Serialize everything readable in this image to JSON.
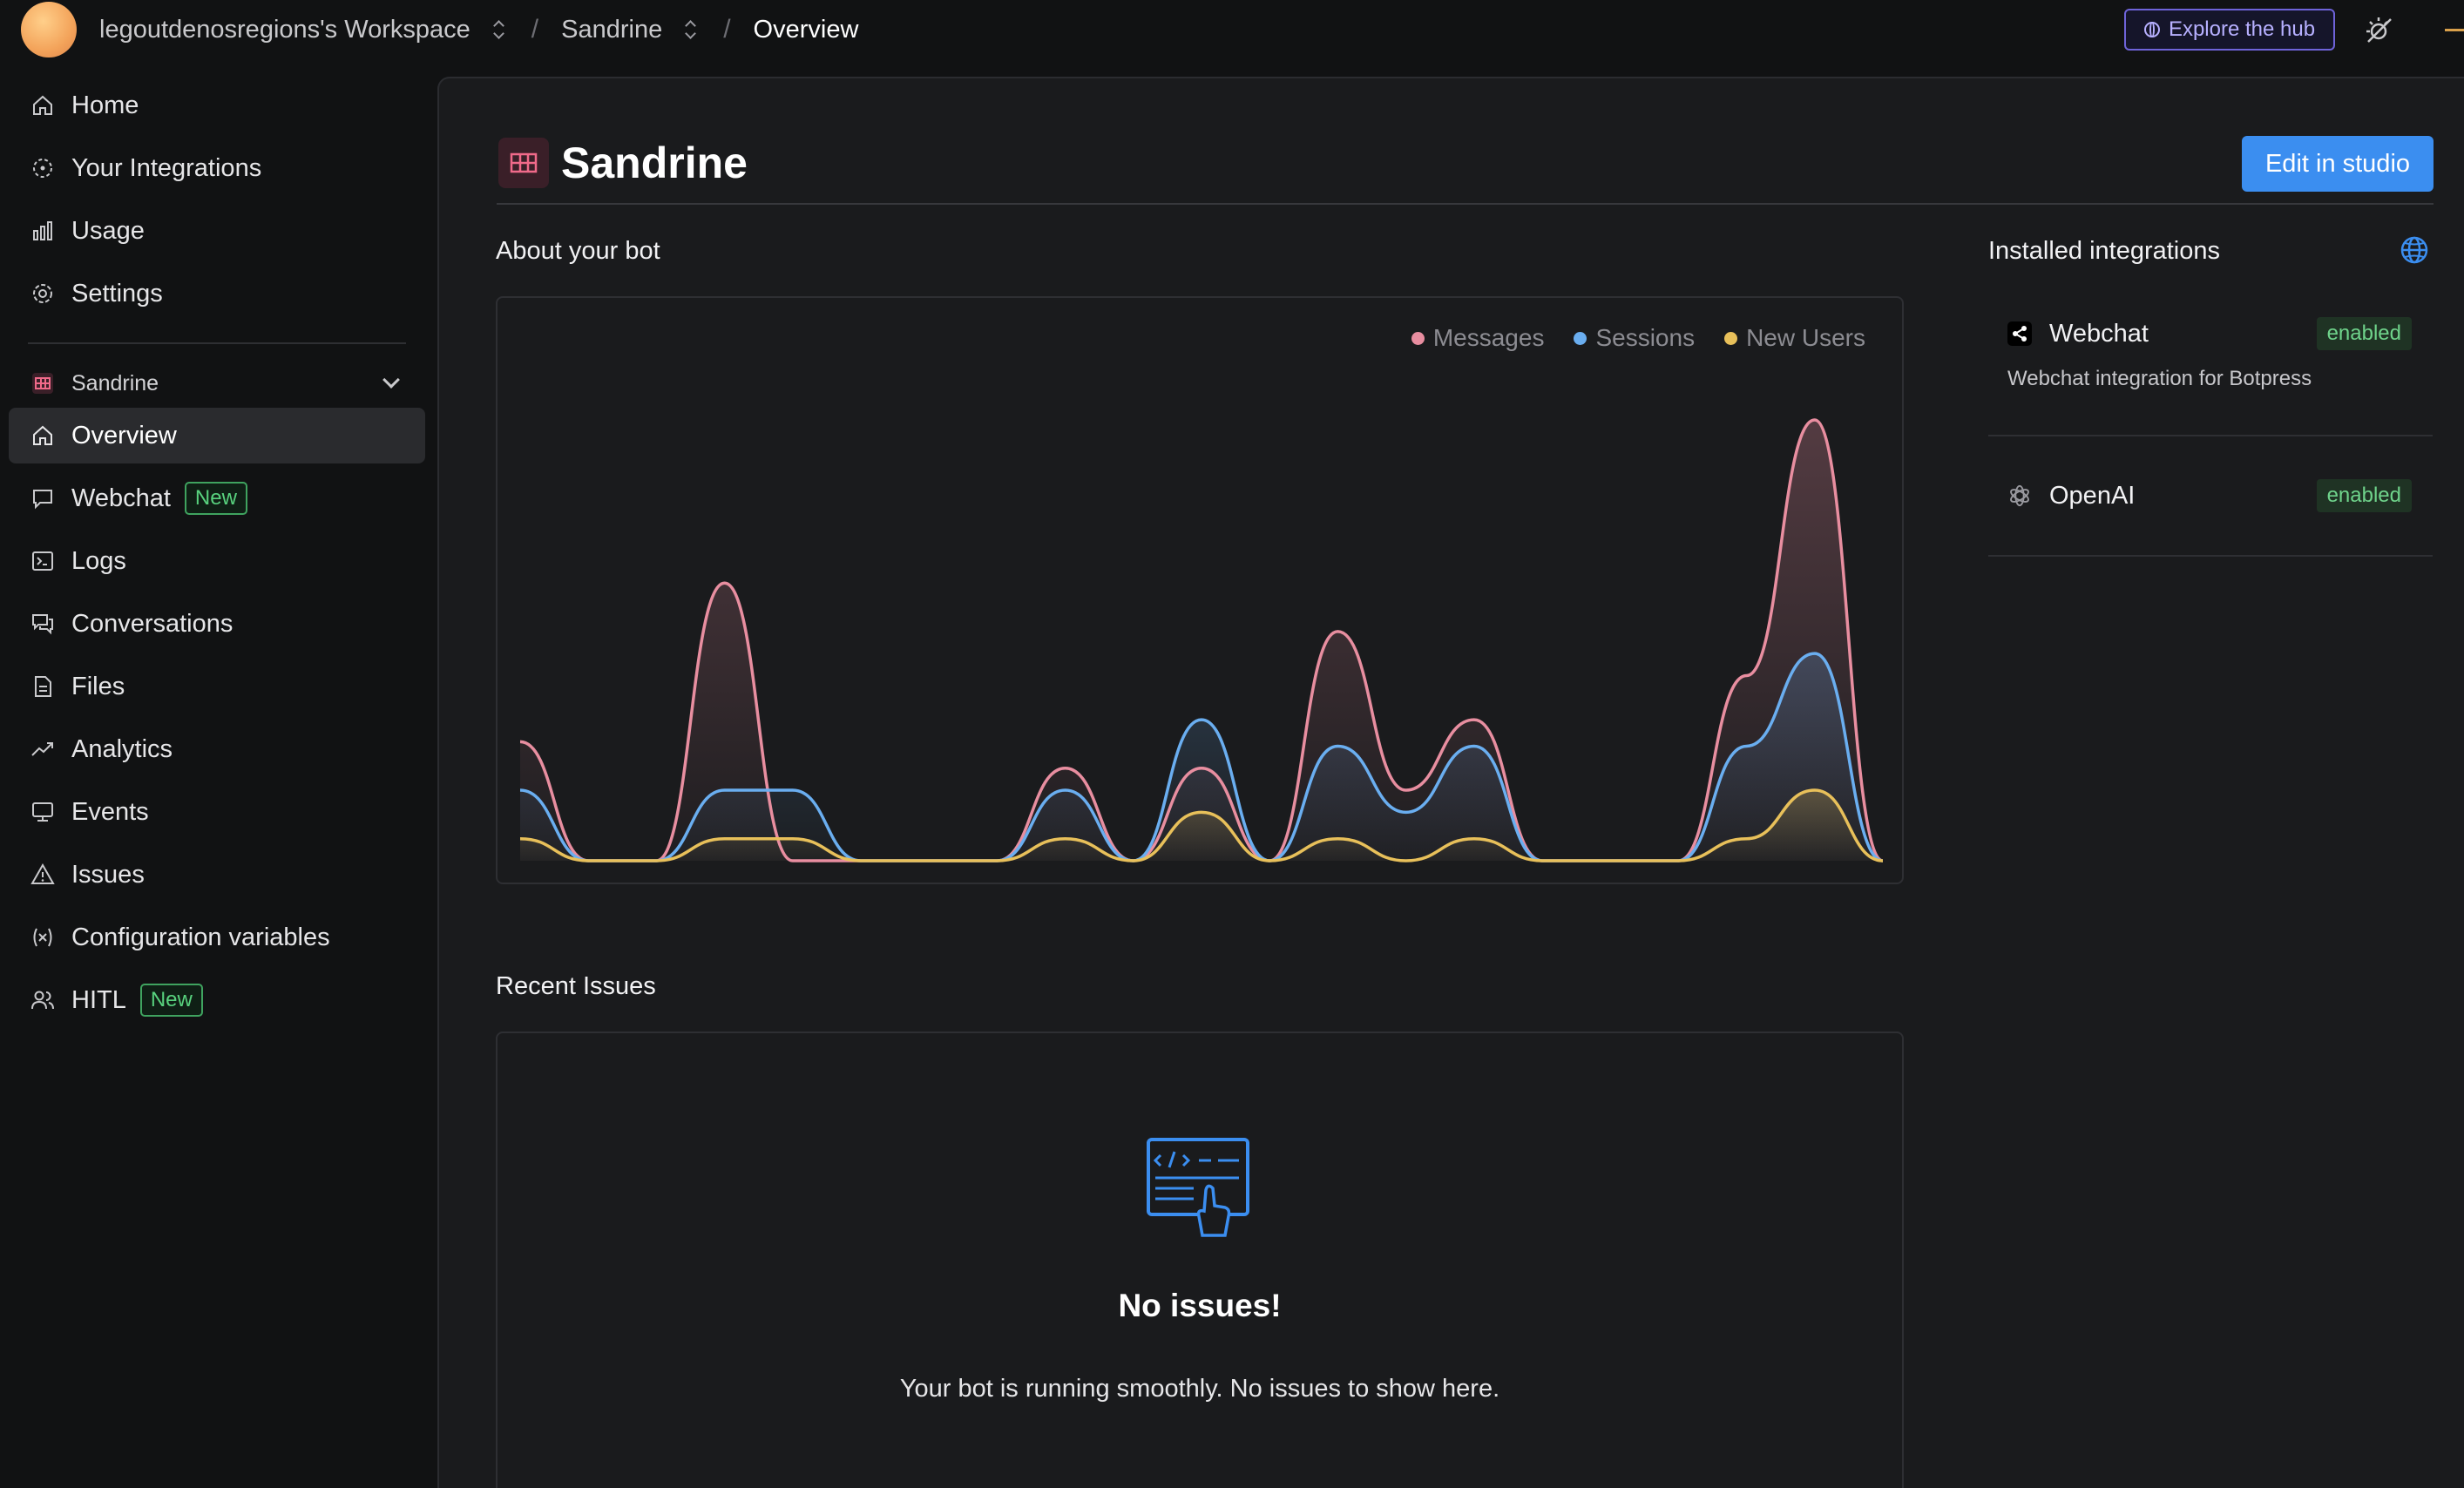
{
  "topbar": {
    "workspace": "legoutdenosregions's Workspace",
    "bot": "Sandrine",
    "page": "Overview",
    "explore_label": "Explore the hub"
  },
  "sidebar": {
    "items_top": [
      {
        "label": "Home",
        "icon": "home-icon"
      },
      {
        "label": "Your Integrations",
        "icon": "integrations-icon"
      },
      {
        "label": "Usage",
        "icon": "bar-chart-icon"
      },
      {
        "label": "Settings",
        "icon": "gear-icon"
      }
    ],
    "bot_name": "Sandrine",
    "items_bot": [
      {
        "label": "Overview",
        "icon": "home-icon",
        "active": true
      },
      {
        "label": "Webchat",
        "icon": "chat-bubble-icon",
        "badge": "New"
      },
      {
        "label": "Logs",
        "icon": "terminal-icon"
      },
      {
        "label": "Conversations",
        "icon": "conversations-icon"
      },
      {
        "label": "Files",
        "icon": "file-icon"
      },
      {
        "label": "Analytics",
        "icon": "trend-icon"
      },
      {
        "label": "Events",
        "icon": "monitor-icon"
      },
      {
        "label": "Issues",
        "icon": "warning-icon"
      },
      {
        "label": "Configuration variables",
        "icon": "variable-icon"
      },
      {
        "label": "HITL",
        "icon": "users-icon",
        "badge": "New"
      }
    ]
  },
  "main": {
    "title": "Sandrine",
    "edit_label": "Edit in studio",
    "about_label": "About your bot",
    "recent_issues_label": "Recent Issues",
    "issues_empty_title": "No issues!",
    "issues_empty_text": "Your bot is running smoothly. No issues to show here."
  },
  "integrations": {
    "label": "Installed integrations",
    "items": [
      {
        "name": "Webchat",
        "status": "enabled",
        "description": "Webchat integration for Botpress"
      },
      {
        "name": "OpenAI",
        "status": "enabled",
        "description": ""
      }
    ]
  },
  "colors": {
    "messages": "#e88ea0",
    "sessions": "#6aaef0",
    "new_users": "#e8c05a",
    "accent": "#3b8ef0"
  },
  "chart_data": {
    "type": "area",
    "legend_position": "top-right",
    "grid": false,
    "series": [
      {
        "name": "Messages",
        "values": [
          0.27,
          0,
          0,
          0.63,
          0,
          0,
          0,
          0,
          0.21,
          0,
          0.21,
          0,
          0.52,
          0.16,
          0.32,
          0,
          0,
          0,
          0.42,
          1.0,
          0
        ]
      },
      {
        "name": "Sessions",
        "values": [
          0.16,
          0,
          0,
          0.16,
          0.16,
          0,
          0,
          0,
          0.16,
          0,
          0.32,
          0,
          0.26,
          0.11,
          0.26,
          0,
          0,
          0,
          0.26,
          0.47,
          0
        ]
      },
      {
        "name": "New Users",
        "values": [
          0.05,
          0,
          0,
          0.05,
          0.05,
          0,
          0,
          0,
          0.05,
          0,
          0.11,
          0,
          0.05,
          0,
          0.05,
          0,
          0,
          0,
          0.05,
          0.16,
          0
        ]
      }
    ]
  }
}
